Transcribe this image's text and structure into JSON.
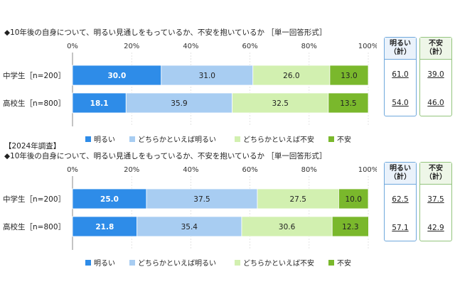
{
  "charts": [
    {
      "survey_label": "",
      "title": "◆10年後の自身について、明るい見通しをもっているか、不安を抱いているか ［単一回答形式］"
    },
    {
      "survey_label": "【2024年調査】",
      "title": "◆10年後の自身について、明るい見通しをもっているか、不安を抱いているか ［単一回答形式］"
    }
  ],
  "summary_headers": {
    "bright": [
      "明るい",
      "（計）"
    ],
    "anxious": [
      "不安",
      "（計）"
    ]
  },
  "colors": {
    "bright": "#2e8ce8",
    "somewhat_bright": "#a8cdf2",
    "somewhat_anxious": "#d2f0b0",
    "anxious": "#7ab82c"
  },
  "chart_data": [
    {
      "type": "bar",
      "stacked": true,
      "orientation": "horizontal",
      "categories": [
        "中学生［n=200］",
        "高校生［n=800］"
      ],
      "x_ticks": [
        "0%",
        "20%",
        "40%",
        "60%",
        "80%",
        "100%"
      ],
      "xlim": [
        0,
        100
      ],
      "legend_position": "bottom",
      "series": [
        {
          "name": "明るい",
          "values": [
            30.0,
            18.1
          ]
        },
        {
          "name": "どちらかといえば明るい",
          "values": [
            31.0,
            35.9
          ]
        },
        {
          "name": "どちらかといえば不安",
          "values": [
            26.0,
            32.5
          ]
        },
        {
          "name": "不安",
          "values": [
            13.0,
            13.5
          ]
        }
      ],
      "summary": {
        "bright_total": [
          "61.0",
          "54.0"
        ],
        "anxious_total": [
          "39.0",
          "46.0"
        ]
      }
    },
    {
      "type": "bar",
      "stacked": true,
      "orientation": "horizontal",
      "categories": [
        "中学生［n=200］",
        "高校生［n=800］"
      ],
      "x_ticks": [
        "0%",
        "20%",
        "40%",
        "60%",
        "80%",
        "100%"
      ],
      "xlim": [
        0,
        100
      ],
      "legend_position": "bottom",
      "series": [
        {
          "name": "明るい",
          "values": [
            25.0,
            21.8
          ]
        },
        {
          "name": "どちらかといえば明るい",
          "values": [
            37.5,
            35.4
          ]
        },
        {
          "name": "どちらかといえば不安",
          "values": [
            27.5,
            30.6
          ]
        },
        {
          "name": "不安",
          "values": [
            10.0,
            12.3
          ]
        }
      ],
      "summary": {
        "bright_total": [
          "62.5",
          "57.1"
        ],
        "anxious_total": [
          "37.5",
          "42.9"
        ]
      }
    }
  ]
}
